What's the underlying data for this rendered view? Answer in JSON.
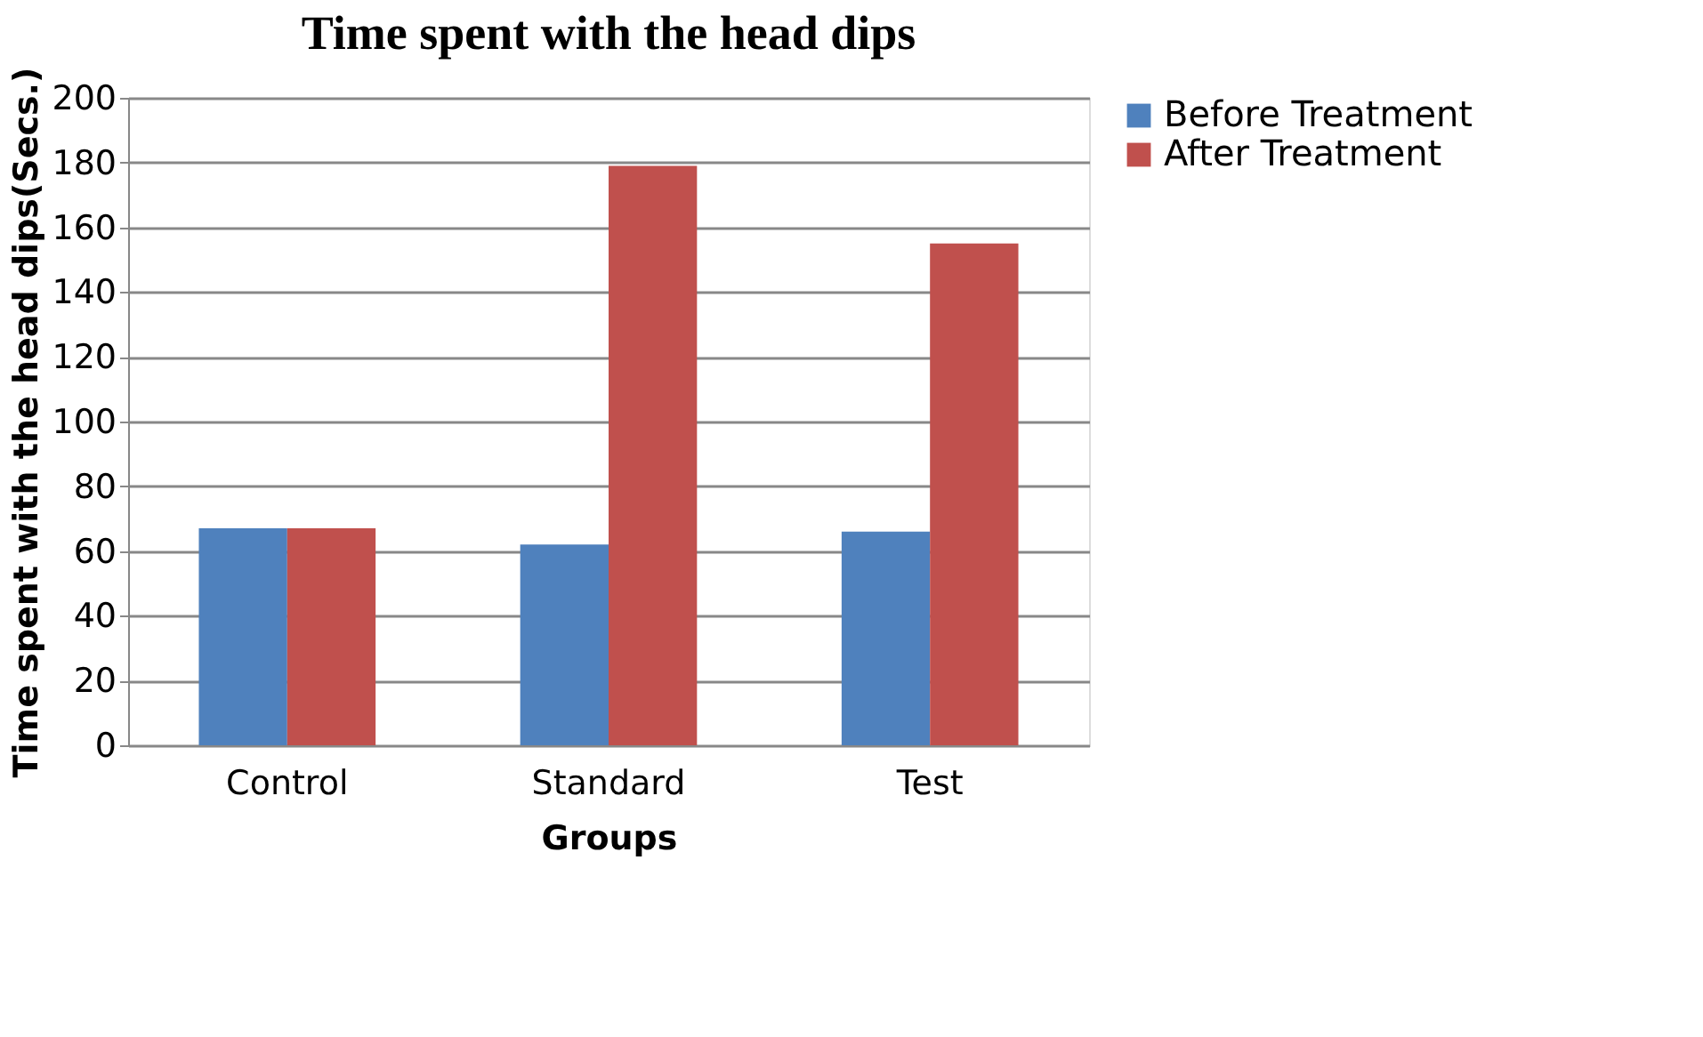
{
  "chart_data": {
    "type": "bar",
    "title": "Time spent with the head dips",
    "xlabel": "Groups",
    "ylabel": "Time spent with the head dips(Secs.)",
    "categories": [
      "Control",
      "Standard",
      "Test"
    ],
    "series": [
      {
        "name": "Before Treatment",
        "color": "#4f81bd",
        "values": [
          67,
          62,
          66
        ]
      },
      {
        "name": "After Treatment",
        "color": "#c0504d",
        "values": [
          67,
          179,
          155
        ]
      }
    ],
    "ylim": [
      0,
      200
    ],
    "yticks": [
      0,
      20,
      40,
      60,
      80,
      100,
      120,
      140,
      160,
      180,
      200
    ],
    "grid": "y",
    "legend": "right"
  }
}
